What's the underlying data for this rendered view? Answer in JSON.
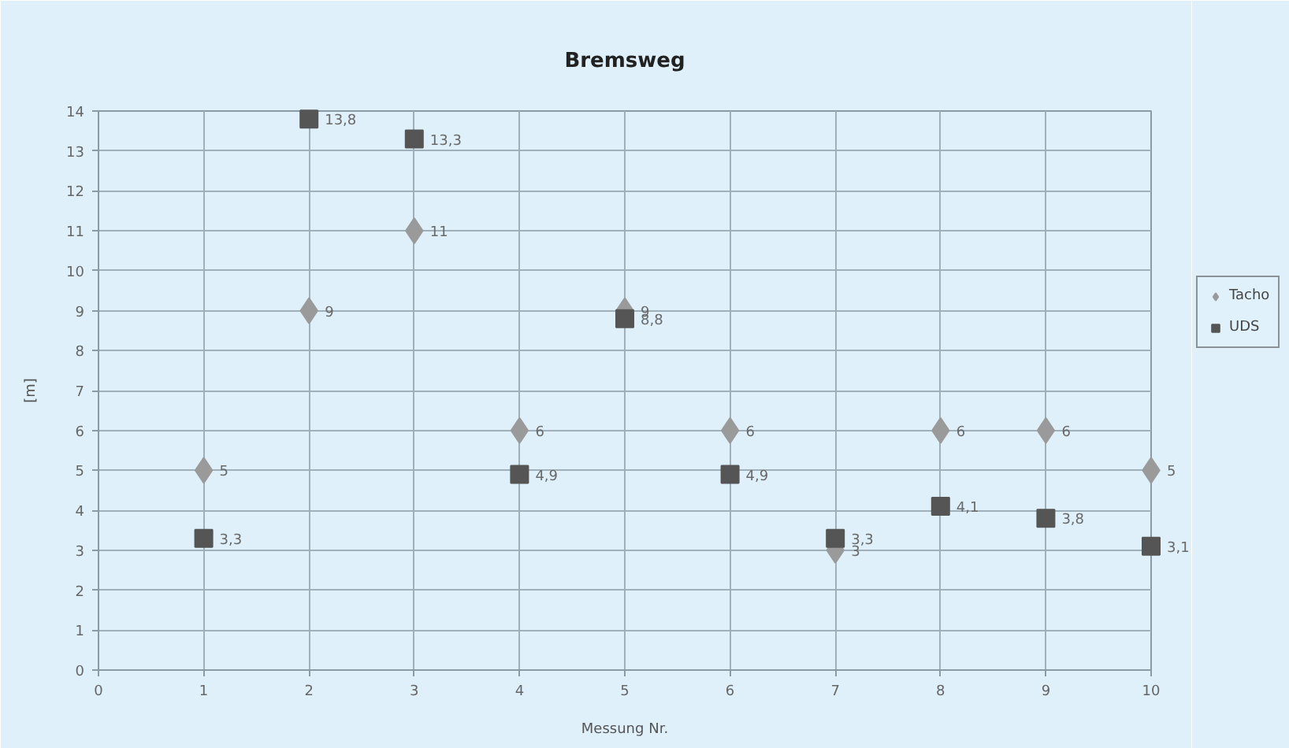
{
  "chart_data": {
    "type": "scatter",
    "title": "Bremsweg",
    "xlabel": "Messung Nr.",
    "ylabel": "[m]",
    "xlim": [
      0,
      10
    ],
    "ylim": [
      0,
      14
    ],
    "xticks": [
      0,
      1,
      2,
      3,
      4,
      5,
      6,
      7,
      8,
      9,
      10
    ],
    "yticks": [
      0,
      1,
      2,
      3,
      4,
      5,
      6,
      7,
      8,
      9,
      10,
      11,
      12,
      13,
      14
    ],
    "grid": true,
    "legend": "right",
    "x": [
      1,
      2,
      3,
      4,
      5,
      6,
      7,
      8,
      9,
      10
    ],
    "series": [
      {
        "name": "Tacho",
        "color": "#9a9a9a",
        "marker": "diamond",
        "values": [
          5,
          9,
          11,
          6,
          9,
          6,
          3,
          6,
          6,
          5
        ],
        "value_labels": [
          "5",
          "9",
          "11",
          "6",
          "9",
          "6",
          "3",
          "6",
          "6",
          "5"
        ]
      },
      {
        "name": "UDS",
        "color": "#555555",
        "marker": "square",
        "values": [
          3.3,
          13.8,
          13.3,
          4.9,
          8.8,
          4.9,
          3.3,
          4.1,
          3.8,
          3.1
        ],
        "value_labels": [
          "3,3",
          "13,8",
          "13,3",
          "4,9",
          "8,8",
          "4,9",
          "3,3",
          "4,1",
          "3,8",
          "3,1"
        ]
      }
    ]
  }
}
